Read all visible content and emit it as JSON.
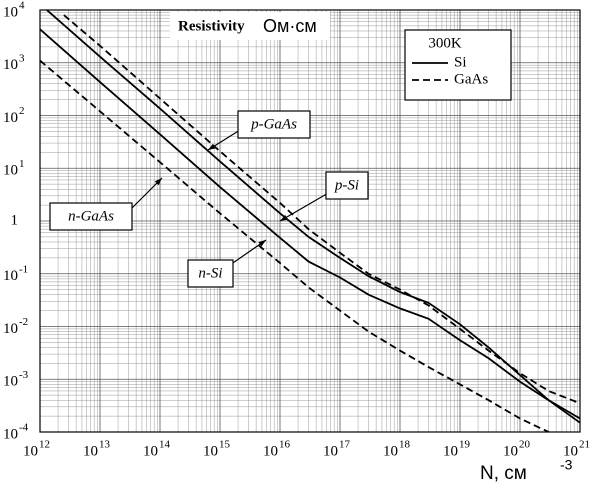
{
  "chart_data": {
    "type": "line",
    "title": "Resistivity",
    "y_label": "Ом·см",
    "x_label": "N, см",
    "x_label_power": "-3",
    "log_x": true,
    "log_y": true,
    "grid": true,
    "minor_grid": true,
    "xlim": [
      1000000000000.0,
      1e+21
    ],
    "ylim": [
      0.0001,
      10000
    ],
    "xticks": [
      {
        "value": 1000000000000.0,
        "label": "10",
        "power": "12"
      },
      {
        "value": 10000000000000.0,
        "label": "10",
        "power": "13"
      },
      {
        "value": 100000000000000.0,
        "label": "10",
        "power": "14"
      },
      {
        "value": 1000000000000000.0,
        "label": "10",
        "power": "15"
      },
      {
        "value": 1e+16,
        "label": "10",
        "power": "16"
      },
      {
        "value": 1e+17,
        "label": "10",
        "power": "17"
      },
      {
        "value": 1e+18,
        "label": "10",
        "power": "18"
      },
      {
        "value": 1e+19,
        "label": "10",
        "power": "19"
      },
      {
        "value": 1e+20,
        "label": "10",
        "power": "20"
      },
      {
        "value": 1e+21,
        "label": "10",
        "power": "21"
      }
    ],
    "yticks": [
      {
        "value": 0.0001,
        "label": "10",
        "power": "-4"
      },
      {
        "value": 0.001,
        "label": "10",
        "power": "-3"
      },
      {
        "value": 0.01,
        "label": "10",
        "power": "-2"
      },
      {
        "value": 0.1,
        "label": "10",
        "power": "-1"
      },
      1,
      {
        "value": 10,
        "label": "10",
        "power": "1"
      },
      {
        "value": 100,
        "label": "10",
        "power": "2"
      },
      {
        "value": 1000,
        "label": "10",
        "power": "3"
      },
      {
        "value": 10000,
        "label": "10",
        "power": "4"
      }
    ],
    "legend": {
      "title": "300K",
      "entries": [
        {
          "label": "Si",
          "dash": "solid"
        },
        {
          "label": "GaAs",
          "dash": "dashed"
        }
      ]
    },
    "series": [
      {
        "name": "p-GaAs",
        "color": "#000",
        "dash": "dashed",
        "x": [
          2500000000000.0,
          10000000000000.0,
          100000000000000.0,
          1000000000000000.0,
          1e+16,
          3e+16,
          1e+17,
          3e+17,
          1e+18,
          3e+18,
          1e+19,
          3e+19,
          1e+20,
          3e+20,
          1e+21
        ],
        "values": [
          8000,
          2100,
          210,
          21,
          2.2,
          0.7,
          0.25,
          0.1,
          0.05,
          0.025,
          0.009,
          0.0035,
          0.0013,
          0.0006,
          0.00035
        ]
      },
      {
        "name": "p-Si",
        "color": "#000",
        "dash": "solid",
        "x": [
          1000000000000.0,
          10000000000000.0,
          100000000000000.0,
          1000000000000000.0,
          1e+16,
          3e+16,
          1e+17,
          3e+17,
          1e+18,
          3e+18,
          1e+19,
          3e+19,
          1e+20,
          3e+20,
          1e+21
        ],
        "values": [
          13000,
          1300,
          135,
          13.5,
          1.4,
          0.5,
          0.2,
          0.09,
          0.045,
          0.028,
          0.011,
          0.004,
          0.0012,
          0.0004,
          0.00015
        ]
      },
      {
        "name": "n-GaAs",
        "color": "#000",
        "dash": "dashed",
        "x": [
          1000000000000.0,
          10000000000000.0,
          100000000000000.0,
          1000000000000000.0,
          1e+16,
          3e+16,
          1e+17,
          3e+17,
          1e+18,
          3e+18,
          1e+19,
          3e+19,
          1e+20,
          3e+20
        ],
        "values": [
          1100,
          120,
          13,
          1.4,
          0.16,
          0.055,
          0.02,
          0.008,
          0.0035,
          0.0017,
          0.0008,
          0.0004,
          0.00018,
          0.0001
        ]
      },
      {
        "name": "n-Si",
        "color": "#000",
        "dash": "solid",
        "x": [
          1000000000000.0,
          10000000000000.0,
          100000000000000.0,
          1000000000000000.0,
          1e+16,
          3e+16,
          1e+17,
          3e+17,
          1e+18,
          3e+18,
          1e+19,
          3e+19,
          1e+20,
          3e+20,
          1e+21
        ],
        "values": [
          4300,
          430,
          44,
          4.4,
          0.48,
          0.17,
          0.085,
          0.04,
          0.022,
          0.014,
          0.0055,
          0.0025,
          0.0009,
          0.0004,
          0.00018
        ]
      }
    ]
  }
}
